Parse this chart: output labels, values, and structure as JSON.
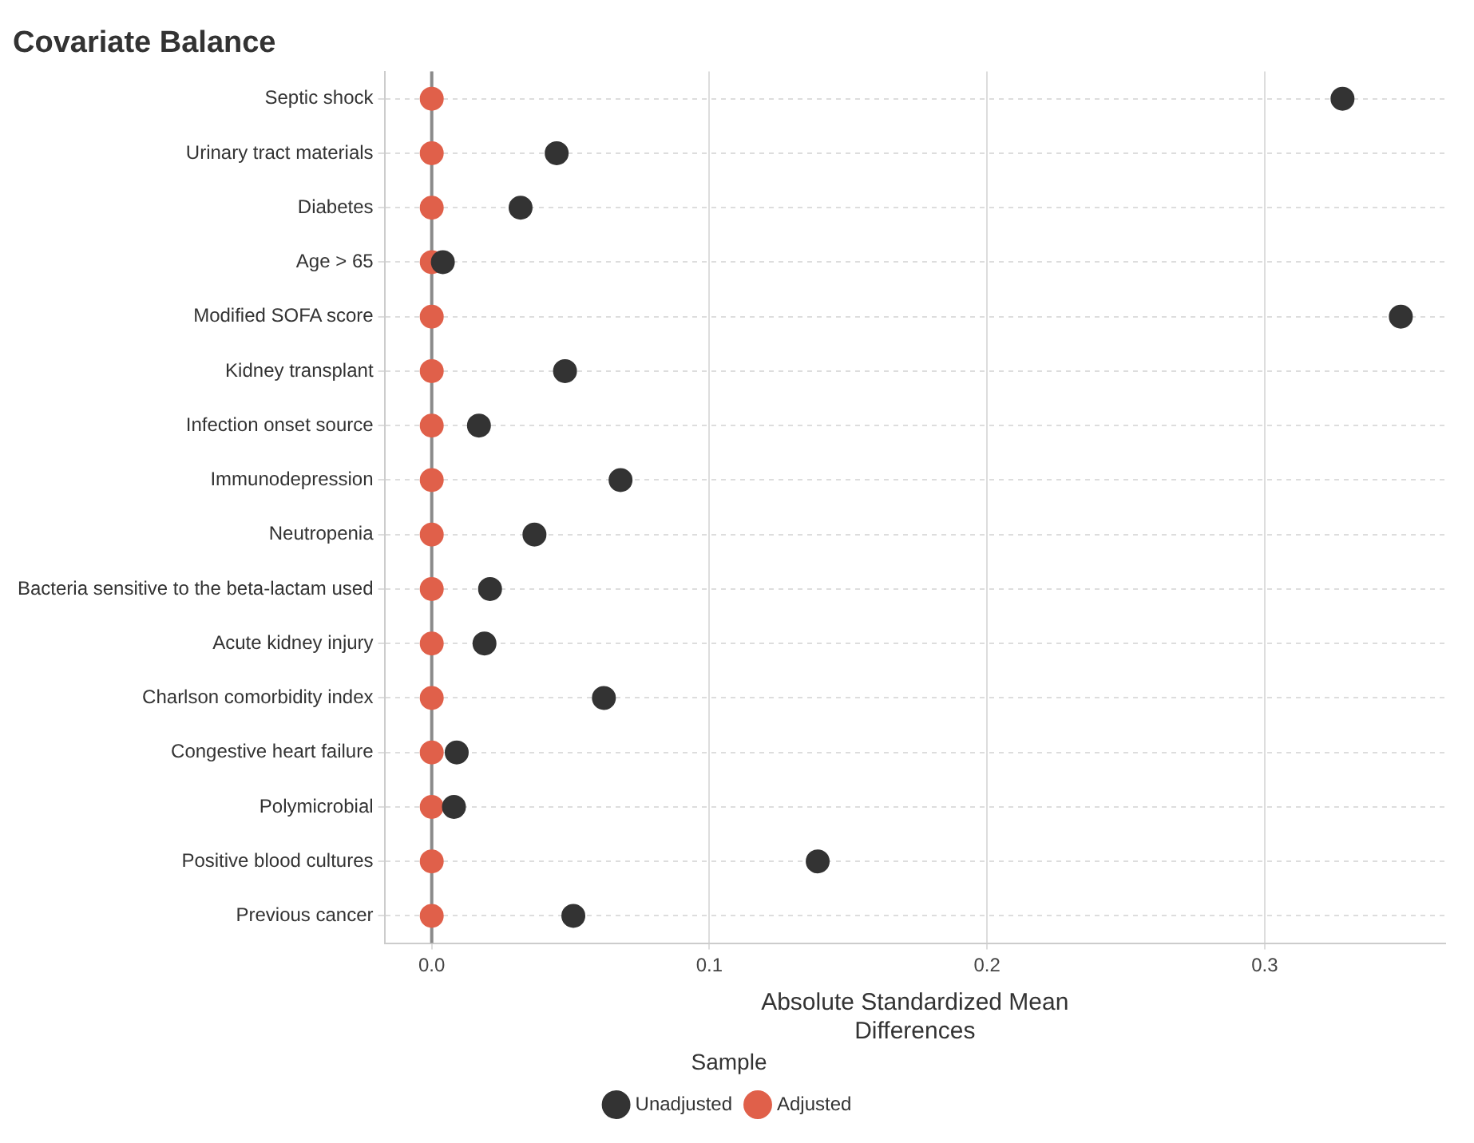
{
  "chart_data": {
    "type": "scatter",
    "title": "Covariate Balance",
    "xlabel": "Absolute Standardized Mean Differences",
    "legend_title": "Sample",
    "orientation": "horizontal",
    "categories": [
      "Septic shock",
      "Urinary tract materials",
      "Diabetes",
      "Age > 65",
      "Modified SOFA score",
      "Kidney transplant",
      "Infection onset source",
      "Immunodepression",
      "Neutropenia",
      "Bacteria sensitive to the beta-lactam used",
      "Acute kidney injury",
      "Charlson comorbidity index",
      "Congestive heart failure",
      "Polymicrobial",
      "Positive blood cultures",
      "Previous cancer"
    ],
    "series": [
      {
        "name": "Unadjusted",
        "color": "#333333",
        "values": [
          0.328,
          0.045,
          0.032,
          0.004,
          0.349,
          0.048,
          0.017,
          0.068,
          0.037,
          0.021,
          0.019,
          0.062,
          0.009,
          0.008,
          0.139,
          0.051
        ]
      },
      {
        "name": "Adjusted",
        "color": "#e0604a",
        "values": [
          0,
          0,
          0,
          0,
          0,
          0,
          0,
          0,
          0,
          0,
          0,
          0,
          0,
          0,
          0,
          0
        ]
      }
    ],
    "xlim": [
      -0.017,
      0.365
    ],
    "xticks": [
      {
        "value": 0,
        "label": "0.0"
      },
      0.1,
      0.2,
      0.3
    ],
    "ref_lines": [
      {
        "axis": "x",
        "value": 0,
        "color": "#8a8a8a"
      }
    ],
    "grid": true,
    "legend": "bottom",
    "marker": "circle"
  }
}
